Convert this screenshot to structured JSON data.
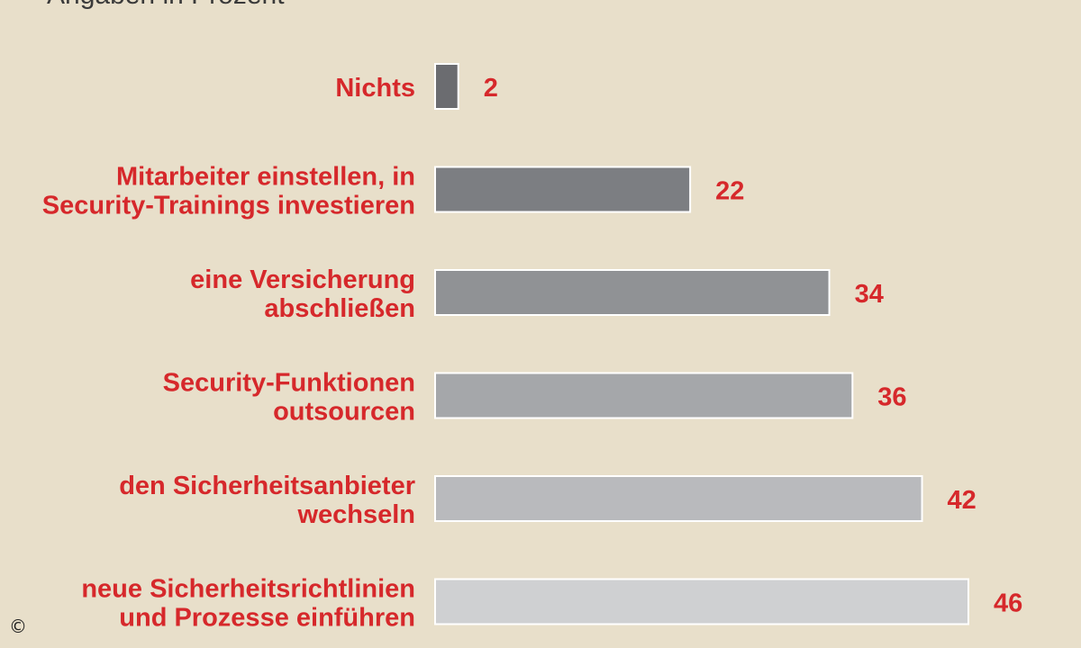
{
  "subtitle": "Angaben in Prozent",
  "copyright": "©",
  "chart_data": {
    "type": "bar",
    "orientation": "horizontal",
    "subtitle": "Angaben in Prozent",
    "categories": [
      [
        "Nichts"
      ],
      [
        "Mitarbeiter einstellen, in",
        "Security-Trainings investieren"
      ],
      [
        "eine Versicherung",
        "abschließen"
      ],
      [
        "Security-Funktionen",
        "outsourcen"
      ],
      [
        "den Sicherheitsanbieter",
        "wechseln"
      ],
      [
        "neue Sicherheitsrichtlinien",
        "und Prozesse einführen"
      ]
    ],
    "values": [
      2,
      22,
      34,
      36,
      42,
      46
    ],
    "bar_colors": [
      "#6b6c70",
      "#7c7e82",
      "#909295",
      "#a5a7aa",
      "#b9babd",
      "#cfd0d2"
    ],
    "label_color": "#d6282b",
    "grid": false,
    "legend": "none"
  }
}
